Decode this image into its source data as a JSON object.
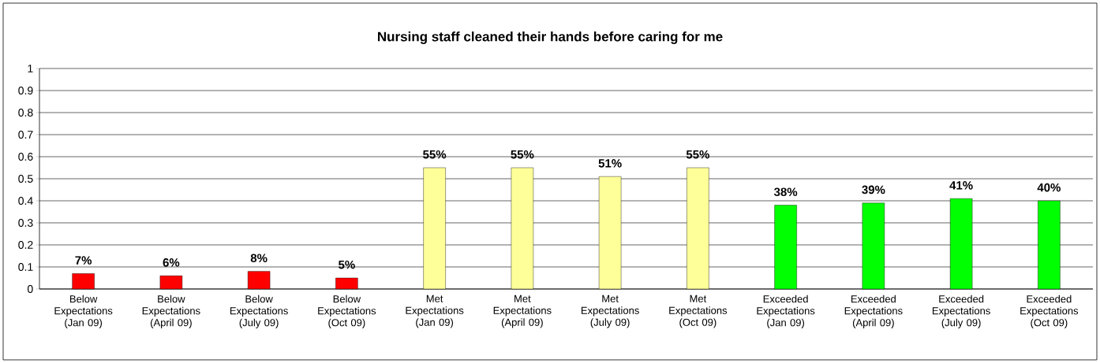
{
  "chart_data": {
    "type": "bar",
    "title": "Nursing staff cleaned their hands before caring for me",
    "categories": [
      "Below Expectations (Jan 09)",
      "Below Expectations (April 09)",
      "Below Expectations (July 09)",
      "Below Expectations (Oct 09)",
      "Met Expectations (Jan 09)",
      "Met Expectations (April 09)",
      "Met Expectations (July 09)",
      "Met Expectations (Oct 09)",
      "Exceeded Expectations (Jan 09)",
      "Exceeded Expectations (April 09)",
      "Exceeded Expectations (July 09)",
      "Exceeded Expectations (Oct 09)"
    ],
    "values": [
      0.07,
      0.06,
      0.08,
      0.05,
      0.55,
      0.55,
      0.51,
      0.55,
      0.38,
      0.39,
      0.41,
      0.4
    ],
    "value_labels": [
      "7%",
      "6%",
      "8%",
      "5%",
      "55%",
      "55%",
      "51%",
      "55%",
      "38%",
      "39%",
      "41%",
      "40%"
    ],
    "colors": [
      "#ff0000",
      "#ff0000",
      "#ff0000",
      "#ff0000",
      "#ffff99",
      "#ffff99",
      "#ffff99",
      "#ffff99",
      "#00ff00",
      "#00ff00",
      "#00ff00",
      "#00ff00"
    ],
    "ylim": [
      0,
      1
    ],
    "yticks": [
      0,
      0.1,
      0.2,
      0.3,
      0.4,
      0.5,
      0.6,
      0.7,
      0.8,
      0.9,
      1
    ],
    "grid": "y"
  }
}
